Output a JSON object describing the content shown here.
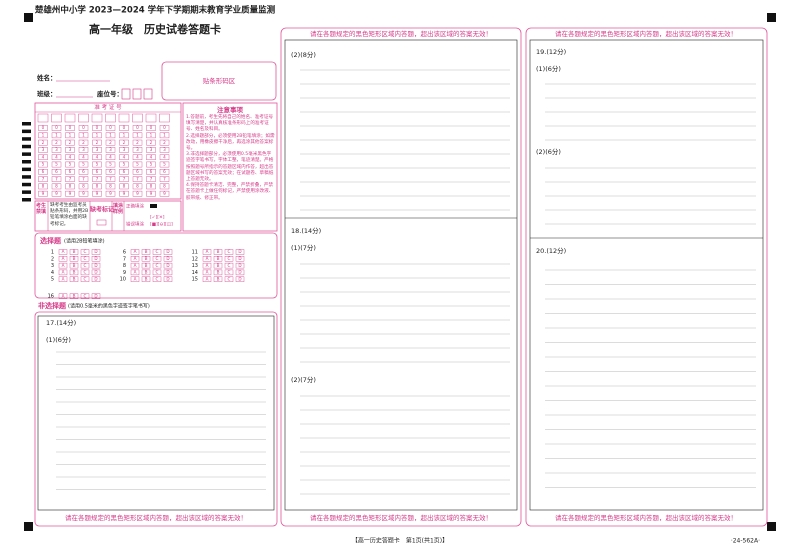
{
  "header": {
    "title": "楚雄州中小学 2023—2024 学年下学期期末教育学业质量监测",
    "subtitle": "高一年级　历史试卷答题卡"
  },
  "student": {
    "name_label": "姓名：",
    "class_label": "班级：",
    "seat_label": "座位号："
  },
  "barcode": "贴条形码区",
  "exam_number": {
    "title": "准 考 证 号",
    "digits": [
      "0",
      "1",
      "2",
      "3",
      "4",
      "5",
      "6",
      "7",
      "8",
      "9"
    ]
  },
  "notice": {
    "title": "注意事项",
    "items": [
      "1.答题前，考生先将自己的姓名、准考证号填写清楚，并认真核准条形码上的准考证号、姓名及科目。",
      "2.选择题部分，必须使用2B铅笔填涂；如需改动，用橡皮擦干净后，再选涂其他答案标号。",
      "3.非选择题部分，必须使用0.5毫米黑色字迹签字笔书写，字体工整，笔迹清楚。严格按照题号所指示的答题区域内作答，超出答题区域书写的答案无效；在试题卷、草稿纸上答题无效。",
      "4.保持答题卡清洁、完整，严禁折叠，严禁在答题卡上做任何标记，严禁使用涂改液、胶带纸、修正带。"
    ]
  },
  "absent": {
    "forbid_label": "考生禁填",
    "forbid_text": "缺考考生由监考员贴条形码，并用2B铅笔填涂右面的缺考标记。",
    "mark_label": "缺考标记",
    "sample_label": "填涂样例",
    "correct": "正确填涂",
    "wrong": "错误填涂"
  },
  "choice": {
    "title": "选择题",
    "hint": "(请用2B铅笔填涂)",
    "questions": [
      1,
      2,
      3,
      4,
      5,
      6,
      7,
      8,
      9,
      10,
      11,
      12,
      13,
      14,
      15,
      16
    ],
    "options": [
      "A",
      "B",
      "C",
      "D"
    ]
  },
  "non_choice": {
    "title": "非选择题",
    "hint": "(请用0.5毫米的黑色字迹签字笔书写)"
  },
  "warning": "请在各题规定的黑色矩形区域内答题，超出该区域的答案无效！",
  "questions": [
    {
      "label": "17.(14分)",
      "parts": [
        "(1)(6分)",
        "(2)(8分)"
      ]
    },
    {
      "label": "18.(14分)",
      "parts": [
        "(1)(7分)",
        "(2)(7分)"
      ]
    },
    {
      "label": "19.(12分)",
      "parts": [
        "(1)(6分)",
        "(2)(6分)"
      ]
    },
    {
      "label": "20.(12分)",
      "parts": []
    }
  ],
  "footer": {
    "page": "【高一历史答题卡　第1页(共1页)】",
    "code": "·24-562A·"
  }
}
